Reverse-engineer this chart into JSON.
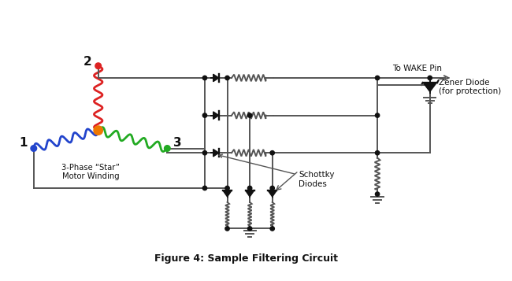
{
  "title": "Figure 4: Sample Filtering Circuit",
  "background_color": "#ffffff",
  "line_color": "#555555",
  "colors": {
    "red": "#dd2222",
    "blue": "#2244cc",
    "green": "#22aa22",
    "orange": "#ee7700",
    "black": "#111111",
    "gray": "#555555"
  },
  "labels": {
    "node1": "1",
    "node2": "2",
    "node3": "3",
    "motor": "3-Phase “Star”\nMotor Winding",
    "schottky": "Schottky\nDiodes",
    "zener": "Zener Diode\n(for protection)",
    "wake": "To WAKE Pin"
  }
}
